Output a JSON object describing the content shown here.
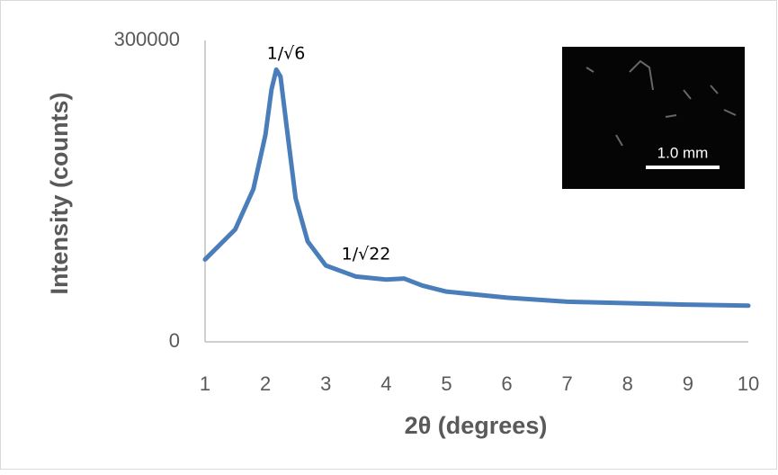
{
  "chart_data": {
    "type": "line",
    "x_label": "2θ (degrees)",
    "y_label": "Intensity (counts)",
    "x": [
      1,
      1.5,
      1.8,
      2.0,
      2.1,
      2.18,
      2.25,
      2.35,
      2.5,
      2.7,
      3,
      3.5,
      4,
      4.3,
      4.6,
      5,
      6,
      7,
      8,
      9,
      10
    ],
    "values": [
      82000,
      112000,
      152000,
      206000,
      251000,
      271000,
      264000,
      215000,
      143000,
      100000,
      76000,
      65000,
      62000,
      63000,
      56000,
      50000,
      44000,
      40000,
      38500,
      37000,
      36000
    ],
    "color": "#4a7ebb",
    "xlim": [
      1,
      10
    ],
    "xticks": [
      1,
      2,
      3,
      4,
      5,
      6,
      7,
      8,
      9,
      10
    ],
    "ylim": [
      0,
      300000
    ],
    "yticks": [
      0,
      300000
    ],
    "annotations": [
      "1/√6",
      "1/√22"
    ],
    "inset_label": "1.0 mm"
  }
}
